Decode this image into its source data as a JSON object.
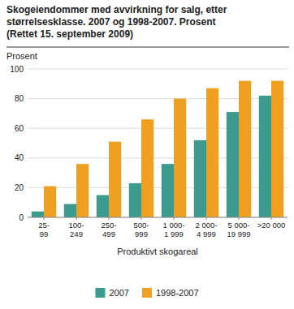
{
  "chart_data": {
    "type": "bar",
    "title": "Skogeiendommer med avvirkning for salg, etter\nstørrelsesklasse. 2007 og 1998-2007. Prosent",
    "subtitle": "(Rettet 15. september 2009)",
    "categories": [
      "25-\n99",
      "100-\n249",
      "250-\n499",
      "500-\n999",
      "1 000-\n1 999",
      "2 000-\n4 999",
      "5 000-\n19 999",
      ">20 000"
    ],
    "series": [
      {
        "name": "2007",
        "color": "#3a9b8e",
        "values": [
          4,
          9,
          15,
          23,
          36,
          52,
          71,
          82
        ]
      },
      {
        "name": "1998-2007",
        "color": "#f0a020",
        "values": [
          21,
          36,
          51,
          66,
          80,
          87,
          92,
          92
        ]
      }
    ],
    "y_label": "Prosent",
    "x_label": "Produktivt skogareal",
    "ylim": [
      0,
      100
    ],
    "yticks": [
      0,
      20,
      40,
      60,
      80,
      100
    ],
    "grid": true,
    "legend": "bottom"
  }
}
